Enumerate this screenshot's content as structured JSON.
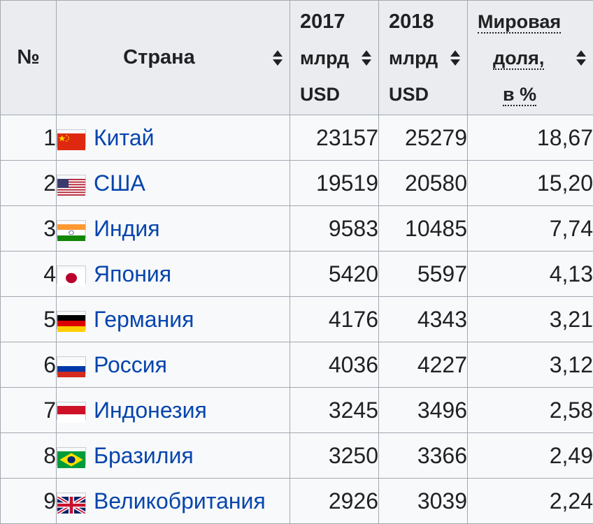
{
  "table": {
    "headers": {
      "num": "№",
      "country": "Страна",
      "y2017": {
        "year": "2017",
        "unit1": "млрд",
        "unit2": "USD"
      },
      "y2018": {
        "year": "2018",
        "unit1": "млрд",
        "unit2": "USD"
      },
      "share": {
        "line1": "Мировая",
        "line2": "доля,",
        "line3": "в %"
      }
    },
    "rows": [
      {
        "rank": "1",
        "flag_icon": "china-flag-icon",
        "country": "Китай",
        "v2017": "23157",
        "v2018": "25279",
        "share": "18,67"
      },
      {
        "rank": "2",
        "flag_icon": "usa-flag-icon",
        "country": "США",
        "v2017": "19519",
        "v2018": "20580",
        "share": "15,20"
      },
      {
        "rank": "3",
        "flag_icon": "india-flag-icon",
        "country": "Индия",
        "v2017": "9583",
        "v2018": "10485",
        "share": "7,74"
      },
      {
        "rank": "4",
        "flag_icon": "japan-flag-icon",
        "country": "Япония",
        "v2017": "5420",
        "v2018": "5597",
        "share": "4,13"
      },
      {
        "rank": "5",
        "flag_icon": "germany-flag-icon",
        "country": "Германия",
        "v2017": "4176",
        "v2018": "4343",
        "share": "3,21"
      },
      {
        "rank": "6",
        "flag_icon": "russia-flag-icon",
        "country": "Россия",
        "v2017": "4036",
        "v2018": "4227",
        "share": "3,12"
      },
      {
        "rank": "7",
        "flag_icon": "indonesia-flag-icon",
        "country": "Индонезия",
        "v2017": "3245",
        "v2018": "3496",
        "share": "2,58"
      },
      {
        "rank": "8",
        "flag_icon": "brazil-flag-icon",
        "country": "Бразилия",
        "v2017": "3250",
        "v2018": "3366",
        "share": "2,49"
      },
      {
        "rank": "9",
        "flag_icon": "uk-flag-icon",
        "country": "Великобритания",
        "v2017": "2926",
        "v2018": "3039",
        "share": "2,24"
      }
    ]
  },
  "colors": {
    "link": "#0645ad",
    "header_bg": "#eaecf0",
    "cell_bg": "#f8f9fa",
    "border": "#a2a9b1"
  }
}
